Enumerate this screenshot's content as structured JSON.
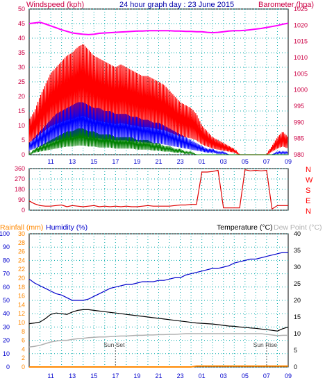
{
  "header": {
    "left_label": "Windspeed (kph)",
    "title": "24 hour graph day : 23 June 2015",
    "right_label": "Barometer (hpa)"
  },
  "colors": {
    "gust": "#ff0000",
    "average": "#0000ff",
    "lull": "#008000",
    "barometer": "#ff00ff",
    "direction": "#e00000",
    "axis_blue": "#0000cc",
    "axis_red": "#cc0044",
    "grid": "#00aaaa",
    "temperature": "#000000",
    "humidity": "#0000cc",
    "dewpoint": "#b0b0b0",
    "rainfall": "#ff8800"
  },
  "footer_labels": {
    "rainfall": "Rainfall (mm)",
    "humidity": "Humidity (%)",
    "temperature": "Temperature (°C)",
    "dewpoint": "Dew Point (°C)"
  },
  "compass": [
    "N",
    "W",
    "S",
    "E",
    "N"
  ],
  "annotations": {
    "sunset": "Sun Set",
    "sunrise": "Sun Rise"
  },
  "chart_data": [
    {
      "type": "line",
      "panel": "wind",
      "x_ticks": [
        "11",
        "13",
        "15",
        "17",
        "19",
        "21",
        "23",
        "01",
        "03",
        "05",
        "07",
        "09"
      ],
      "y_left": {
        "range": [
          0,
          50
        ],
        "ticks": [
          0,
          5,
          10,
          15,
          20,
          25,
          30,
          35,
          40,
          45,
          50
        ]
      },
      "y_right": {
        "range": [
          980,
          1025
        ],
        "ticks": [
          980,
          985,
          990,
          995,
          1000,
          1005,
          1010,
          1015,
          1020,
          1025
        ]
      },
      "hours": [
        9,
        9.5,
        10,
        10.5,
        11,
        11.5,
        12,
        12.5,
        13,
        13.5,
        14,
        14.5,
        15,
        15.5,
        16,
        16.5,
        17,
        17.5,
        18,
        18.5,
        19,
        19.5,
        20,
        20.5,
        21,
        21.5,
        22,
        22.5,
        23,
        23.5,
        24,
        24.5,
        25,
        25.5,
        26,
        26.5,
        27,
        27.5,
        28,
        28.5,
        29,
        29.5,
        30,
        30.5,
        31,
        31.5,
        32,
        32.5,
        33
      ],
      "series": [
        {
          "name": "gust",
          "values": [
            12,
            15,
            20,
            24,
            28,
            30,
            32,
            34,
            35,
            37,
            38,
            36,
            34,
            33,
            32,
            31,
            30,
            31,
            30,
            29,
            28,
            27,
            27,
            26,
            25,
            24,
            22,
            20,
            18,
            17,
            16,
            14,
            10,
            8,
            6,
            5,
            4,
            3,
            2,
            0,
            0,
            0,
            0,
            0,
            0,
            3,
            6,
            8,
            6
          ]
        },
        {
          "name": "average",
          "values": [
            4,
            6,
            8,
            10,
            12,
            14,
            15,
            16,
            17,
            18,
            18,
            17,
            16,
            16,
            15,
            15,
            14,
            14,
            14,
            13,
            13,
            12,
            12,
            11,
            11,
            10,
            9,
            8,
            7,
            6,
            5,
            4,
            3,
            2,
            2,
            1,
            1,
            0,
            0,
            0,
            0,
            0,
            0,
            0,
            0,
            0,
            1,
            1,
            1
          ]
        },
        {
          "name": "lull",
          "values": [
            0,
            2,
            3,
            4,
            5,
            6,
            7,
            8,
            8,
            9,
            9,
            8,
            8,
            7,
            7,
            7,
            6,
            6,
            6,
            6,
            5,
            5,
            5,
            4,
            4,
            3,
            3,
            2,
            2,
            1,
            1,
            0,
            0,
            0,
            0,
            0,
            0,
            0,
            0,
            0,
            0,
            0,
            0,
            0,
            0,
            0,
            0,
            0,
            0
          ]
        },
        {
          "name": "barometer",
          "values": [
            1020.5,
            1020.7,
            1020.9,
            1020.4,
            1019.8,
            1019.2,
            1018.6,
            1018.1,
            1017.6,
            1017.4,
            1017.2,
            1017.1,
            1017.2,
            1017.5,
            1017.6,
            1017.7,
            1017.8,
            1017.9,
            1018.0,
            1018.1,
            1018.2,
            1018.2,
            1018.3,
            1018.3,
            1018.3,
            1018.3,
            1018.3,
            1018.2,
            1018.2,
            1018.1,
            1018.1,
            1018.0,
            1018.0,
            1017.8,
            1017.7,
            1017.8,
            1018.0,
            1018.2,
            1018.3,
            1018.3,
            1018.4,
            1018.6,
            1018.8,
            1019.0,
            1019.3,
            1019.6,
            1019.9,
            1020.3,
            1020.6
          ]
        }
      ]
    },
    {
      "type": "line",
      "panel": "direction",
      "y_left": {
        "range": [
          0,
          360
        ],
        "ticks": [
          0,
          90,
          180,
          270,
          360
        ]
      },
      "hours": [
        9,
        9.5,
        10,
        10.5,
        11,
        11.5,
        12,
        12.5,
        13,
        13.5,
        14,
        14.5,
        15,
        15.5,
        16,
        16.5,
        17,
        17.5,
        18,
        18.5,
        19,
        19.5,
        20,
        20.5,
        21,
        21.5,
        22,
        22.5,
        23,
        23.5,
        24,
        24.5,
        25,
        25.5,
        26,
        26.5,
        27,
        27.5,
        28,
        28.5,
        29,
        29.5,
        30,
        30.5,
        31,
        31.5,
        32,
        32.5,
        33
      ],
      "series": [
        {
          "name": "direction",
          "values": [
            80,
            55,
            40,
            35,
            35,
            40,
            45,
            30,
            40,
            35,
            30,
            35,
            40,
            30,
            35,
            30,
            35,
            30,
            35,
            30,
            30,
            35,
            40,
            35,
            35,
            35,
            35,
            40,
            45,
            45,
            50,
            50,
            330,
            330,
            335,
            345,
            20,
            20,
            20,
            20,
            350,
            340,
            345,
            340,
            345,
            10,
            40,
            40,
            40
          ]
        }
      ]
    },
    {
      "type": "line",
      "panel": "temperature",
      "y_left_humidity": {
        "range": [
          0,
          100
        ],
        "ticks": [
          0,
          10,
          20,
          30,
          40,
          50,
          60,
          70,
          80,
          90,
          100
        ]
      },
      "y_left_rain": {
        "range": [
          0,
          30
        ],
        "ticks": [
          0,
          2,
          4,
          6,
          8,
          10,
          12,
          14,
          16,
          18,
          20,
          22,
          24,
          26,
          28,
          30
        ]
      },
      "y_right": {
        "range": [
          0,
          40
        ],
        "ticks": [
          0,
          5,
          10,
          15,
          20,
          25,
          30,
          35,
          40
        ]
      },
      "hours": [
        9,
        9.5,
        10,
        10.5,
        11,
        11.5,
        12,
        12.5,
        13,
        13.5,
        14,
        14.5,
        15,
        15.5,
        16,
        16.5,
        17,
        17.5,
        18,
        18.5,
        19,
        19.5,
        20,
        20.5,
        21,
        21.5,
        22,
        22.5,
        23,
        23.5,
        24,
        24.5,
        25,
        25.5,
        26,
        26.5,
        27,
        27.5,
        28,
        28.5,
        29,
        29.5,
        30,
        30.5,
        31,
        31.5,
        32,
        32.5,
        33
      ],
      "series": [
        {
          "name": "temperature",
          "values": [
            13,
            13.2,
            13.5,
            14.5,
            15.8,
            16.2,
            16,
            15.8,
            16.5,
            17,
            17.2,
            17.2,
            17,
            16.8,
            16.6,
            16.4,
            16.2,
            16,
            15.8,
            15.6,
            15.4,
            15.2,
            15,
            14.8,
            14.6,
            14.4,
            14.2,
            14,
            13.8,
            13.6,
            13.4,
            13.2,
            13.1,
            13,
            12.9,
            12.7,
            12.5,
            12.3,
            12.2,
            12,
            11.9,
            11.7,
            11.6,
            11.4,
            11.2,
            11,
            10.8,
            11.5,
            12
          ]
        },
        {
          "name": "humidity",
          "values": [
            66,
            63,
            61,
            59,
            57,
            55,
            54,
            52,
            50,
            50,
            50,
            51,
            53,
            55,
            57,
            59,
            60,
            61,
            62,
            62,
            63,
            64,
            64,
            64,
            65,
            65,
            66,
            67,
            67,
            69,
            70,
            71,
            72,
            73,
            74,
            74,
            75,
            76,
            78,
            79,
            80,
            81,
            81,
            82,
            83,
            84,
            85,
            86,
            86
          ]
        },
        {
          "name": "dewpoint",
          "values": [
            6,
            6.2,
            6.5,
            7,
            7.5,
            7.8,
            8,
            8,
            8.3,
            8.5,
            8.6,
            8.8,
            8.9,
            9,
            9,
            9.1,
            9.2,
            9.3,
            9.3,
            9.4,
            9.5,
            9.5,
            9.6,
            9.6,
            9.7,
            9.7,
            9.8,
            9.8,
            9.9,
            10,
            10,
            10,
            10,
            10,
            10,
            10,
            10,
            10,
            10,
            10,
            10,
            10,
            10,
            10,
            9.8,
            9.6,
            9.4,
            9.5,
            9.5
          ]
        },
        {
          "name": "rainfall",
          "values": [
            0,
            0,
            0,
            0,
            0,
            0,
            0,
            0,
            0,
            0,
            0,
            0,
            0,
            0,
            0,
            0,
            0,
            0,
            0,
            0,
            0,
            0,
            0,
            0,
            0,
            0,
            0,
            0,
            0,
            0,
            0,
            0.2,
            0.2,
            0.2,
            0.2,
            0.2,
            0.2,
            0.2,
            0.2,
            0.2,
            0.2,
            0.2,
            0.2,
            0.2,
            0.2,
            0.2,
            0.2,
            0.2,
            0.2
          ]
        }
      ]
    }
  ]
}
